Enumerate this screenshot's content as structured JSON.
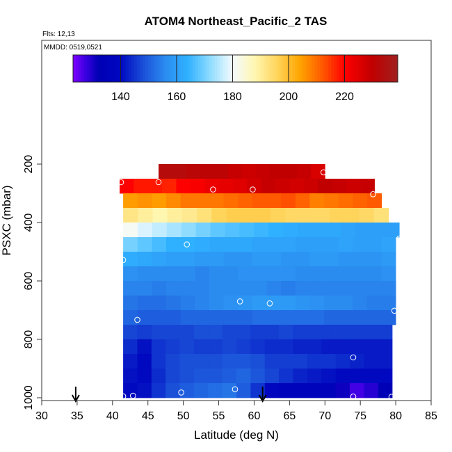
{
  "chart_data": {
    "type": "heatmap",
    "title": "ATOM4 Northeast_Pacific_2 TAS",
    "flights_label": "Flts: 12,13",
    "dates_label": "MMDD: 0519,0521",
    "xlabel": "Latitude (deg N)",
    "ylabel": "PSXC (mbar)",
    "xlim": [
      30,
      85
    ],
    "ylim": [
      1000,
      0
    ],
    "x_ticks": [
      30,
      35,
      40,
      45,
      50,
      55,
      60,
      65,
      70,
      75,
      80,
      85
    ],
    "y_ticks": [
      200,
      400,
      600,
      800,
      1000
    ],
    "colorbar": {
      "range": [
        123,
        239
      ],
      "ticks": [
        140,
        160,
        180,
        200,
        220
      ],
      "stops": [
        {
          "v": 123,
          "c": "#7f00ff"
        },
        {
          "v": 128,
          "c": "#3300dd"
        },
        {
          "v": 132,
          "c": "#0000b4"
        },
        {
          "v": 140,
          "c": "#0008c0"
        },
        {
          "v": 148,
          "c": "#1a4fd8"
        },
        {
          "v": 156,
          "c": "#2b8cf0"
        },
        {
          "v": 164,
          "c": "#2fb1ff"
        },
        {
          "v": 172,
          "c": "#8fdcff"
        },
        {
          "v": 180,
          "c": "#f4fbff"
        },
        {
          "v": 188,
          "c": "#fff6b0"
        },
        {
          "v": 196,
          "c": "#ffd45a"
        },
        {
          "v": 204,
          "c": "#ffa500"
        },
        {
          "v": 212,
          "c": "#ff5a00"
        },
        {
          "v": 220,
          "c": "#ff0000"
        },
        {
          "v": 230,
          "c": "#c00000"
        },
        {
          "v": 239,
          "c": "#a02020"
        }
      ]
    },
    "pressure_bins": [
      {
        "pmin": 150,
        "pmax": 200,
        "lat_range": [
          42.5,
          70
        ],
        "values": []
      },
      {
        "pmin": 200,
        "pmax": 250,
        "lat_range": [
          46.5,
          70
        ],
        "values": [
          233,
          233,
          232,
          231,
          231,
          229,
          228,
          229,
          230,
          230,
          229,
          226
        ]
      },
      {
        "pmin": 250,
        "pmax": 300,
        "lat_range": [
          41,
          77
        ],
        "values": [
          220,
          218,
          218,
          217,
          220,
          221,
          223,
          224,
          225,
          227,
          229,
          228,
          227,
          228,
          230,
          229,
          228,
          229
        ]
      },
      {
        "pmin": 300,
        "pmax": 350,
        "lat_range": [
          41.5,
          78
        ],
        "values": [
          205,
          206,
          205,
          207,
          209,
          209,
          209,
          210,
          211,
          212,
          212,
          213,
          211,
          208,
          209,
          210,
          211,
          212
        ]
      },
      {
        "pmin": 350,
        "pmax": 400,
        "lat_range": [
          41.5,
          79
        ],
        "values": [
          192,
          190,
          188,
          190,
          191,
          193,
          196,
          197,
          197,
          197,
          196,
          195,
          195,
          195,
          196,
          196,
          195,
          193
        ]
      },
      {
        "pmin": 400,
        "pmax": 450,
        "lat_range": [
          41.5,
          80.5
        ],
        "values": [
          181,
          178,
          176,
          174,
          172,
          170,
          168,
          167,
          166,
          165,
          164,
          163,
          162,
          162,
          162,
          161,
          160,
          160,
          160
        ]
      },
      {
        "pmin": 450,
        "pmax": 500,
        "lat_range": [
          41.5,
          80
        ],
        "values": [
          170,
          168,
          166,
          164,
          164,
          163,
          162,
          162,
          162,
          161,
          161,
          161,
          160,
          160,
          160,
          161,
          160,
          160,
          161
        ]
      },
      {
        "pmin": 500,
        "pmax": 550,
        "lat_range": [
          41.5,
          80
        ],
        "values": [
          163,
          162,
          161,
          160,
          160,
          159,
          159,
          158,
          158,
          159,
          159,
          158,
          158,
          159,
          159,
          158,
          158,
          158,
          159
        ]
      },
      {
        "pmin": 550,
        "pmax": 600,
        "lat_range": [
          41.5,
          80
        ],
        "values": [
          157,
          156,
          156,
          156,
          156,
          155,
          156,
          156,
          157,
          157,
          157,
          157,
          156,
          156,
          156,
          156,
          156,
          156,
          157
        ]
      },
      {
        "pmin": 600,
        "pmax": 650,
        "lat_range": [
          41.5,
          80
        ],
        "values": [
          155,
          155,
          154,
          155,
          155,
          155,
          156,
          156,
          156,
          156,
          155,
          154,
          155,
          155,
          155,
          155,
          155,
          155,
          155
        ]
      },
      {
        "pmin": 650,
        "pmax": 700,
        "lat_range": [
          41.5,
          80
        ],
        "values": [
          153,
          152,
          152,
          153,
          154,
          155,
          156,
          157,
          158,
          159,
          159,
          159,
          158,
          157,
          156,
          156,
          155,
          154,
          154
        ]
      },
      {
        "pmin": 700,
        "pmax": 750,
        "lat_range": [
          41.5,
          80
        ],
        "values": [
          151,
          150,
          150,
          150,
          151,
          151,
          151,
          151,
          151,
          152,
          152,
          152,
          152,
          152,
          151,
          151,
          151,
          151,
          151
        ]
      },
      {
        "pmin": 750,
        "pmax": 800,
        "lat_range": [
          41.5,
          79.5
        ],
        "values": [
          147,
          146,
          147,
          147,
          147,
          148,
          148,
          147,
          147,
          146,
          146,
          147,
          146,
          146,
          146,
          146,
          146,
          146,
          146
        ]
      },
      {
        "pmin": 800,
        "pmax": 850,
        "lat_range": [
          41.5,
          79.5
        ],
        "values": [
          144,
          141,
          145,
          146,
          147,
          146,
          146,
          147,
          146,
          145,
          144,
          144,
          143,
          143,
          142,
          142,
          142,
          142,
          142
        ]
      },
      {
        "pmin": 850,
        "pmax": 900,
        "lat_range": [
          41.5,
          79.5
        ],
        "values": [
          142,
          140,
          145,
          147,
          148,
          148,
          148,
          149,
          149,
          148,
          146,
          146,
          146,
          145,
          145,
          144,
          143,
          142,
          142
        ]
      },
      {
        "pmin": 900,
        "pmax": 950,
        "lat_range": [
          41.5,
          79.5
        ],
        "values": [
          141,
          140,
          144,
          147,
          148,
          149,
          149,
          150,
          151,
          149,
          147,
          145,
          143,
          142,
          141,
          140,
          140,
          140,
          140
        ]
      },
      {
        "pmin": 950,
        "pmax": 1000,
        "lat_range": [
          41.5,
          79.5
        ],
        "values": [
          140,
          141,
          145,
          148,
          150,
          151,
          152,
          153,
          150,
          145,
          139,
          136,
          136,
          137,
          135,
          131,
          127,
          129,
          133
        ]
      }
    ],
    "sample_points": [
      {
        "lat": 41.2,
        "p": 262
      },
      {
        "lat": 46.5,
        "p": 262
      },
      {
        "lat": 54.2,
        "p": 287
      },
      {
        "lat": 59.8,
        "p": 287
      },
      {
        "lat": 69.8,
        "p": 228
      },
      {
        "lat": 76.8,
        "p": 303
      },
      {
        "lat": 80.5,
        "p": 455
      },
      {
        "lat": 41.5,
        "p": 528
      },
      {
        "lat": 50.5,
        "p": 475
      },
      {
        "lat": 58.0,
        "p": 670
      },
      {
        "lat": 62.2,
        "p": 677
      },
      {
        "lat": 43.5,
        "p": 733
      },
      {
        "lat": 79.8,
        "p": 702
      },
      {
        "lat": 74.0,
        "p": 862
      },
      {
        "lat": 41.5,
        "p": 995
      },
      {
        "lat": 42.9,
        "p": 993
      },
      {
        "lat": 49.7,
        "p": 982
      },
      {
        "lat": 57.3,
        "p": 971
      },
      {
        "lat": 74.0,
        "p": 996
      },
      {
        "lat": 79.4,
        "p": 997
      }
    ],
    "arrows": [
      {
        "lat": 34.8
      },
      {
        "lat": 61.2
      }
    ],
    "grid": false
  }
}
